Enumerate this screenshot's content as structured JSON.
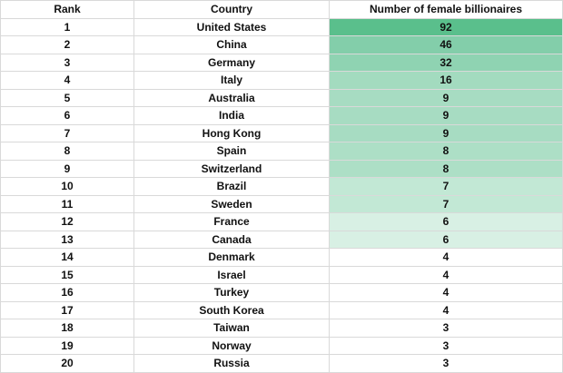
{
  "table": {
    "headers": {
      "rank": "Rank",
      "country": "Country",
      "count": "Number of female billionaires"
    },
    "rows": [
      {
        "rank": "1",
        "country": "United States",
        "count": "92"
      },
      {
        "rank": "2",
        "country": "China",
        "count": "46"
      },
      {
        "rank": "3",
        "country": "Germany",
        "count": "32"
      },
      {
        "rank": "4",
        "country": "Italy",
        "count": "16"
      },
      {
        "rank": "5",
        "country": "Australia",
        "count": "9"
      },
      {
        "rank": "6",
        "country": "India",
        "count": "9"
      },
      {
        "rank": "7",
        "country": "Hong Kong",
        "count": "9"
      },
      {
        "rank": "8",
        "country": "Spain",
        "count": "8"
      },
      {
        "rank": "9",
        "country": "Switzerland",
        "count": "8"
      },
      {
        "rank": "10",
        "country": "Brazil",
        "count": "7"
      },
      {
        "rank": "11",
        "country": "Sweden",
        "count": "7"
      },
      {
        "rank": "12",
        "country": "France",
        "count": "6"
      },
      {
        "rank": "13",
        "country": "Canada",
        "count": "6"
      },
      {
        "rank": "14",
        "country": "Denmark",
        "count": "4"
      },
      {
        "rank": "15",
        "country": "Israel",
        "count": "4"
      },
      {
        "rank": "16",
        "country": "Turkey",
        "count": "4"
      },
      {
        "rank": "17",
        "country": "South Korea",
        "count": "4"
      },
      {
        "rank": "18",
        "country": "Taiwan",
        "count": "3"
      },
      {
        "rank": "19",
        "country": "Norway",
        "count": "3"
      },
      {
        "rank": "20",
        "country": "Russia",
        "count": "3"
      }
    ]
  },
  "colors": {
    "shade_92": "#5abf8c",
    "shade_46": "#83ceaa",
    "shade_32": "#8fd3b2",
    "shade_16": "#a3dbbf",
    "shade_9": "#a7dcc2",
    "shade_8": "#addfc6",
    "shade_7": "#c2e8d5",
    "shade_6": "#d8f0e4",
    "shade_none": "#ffffff",
    "grid": "#d9d9d9",
    "text": "#111111"
  }
}
